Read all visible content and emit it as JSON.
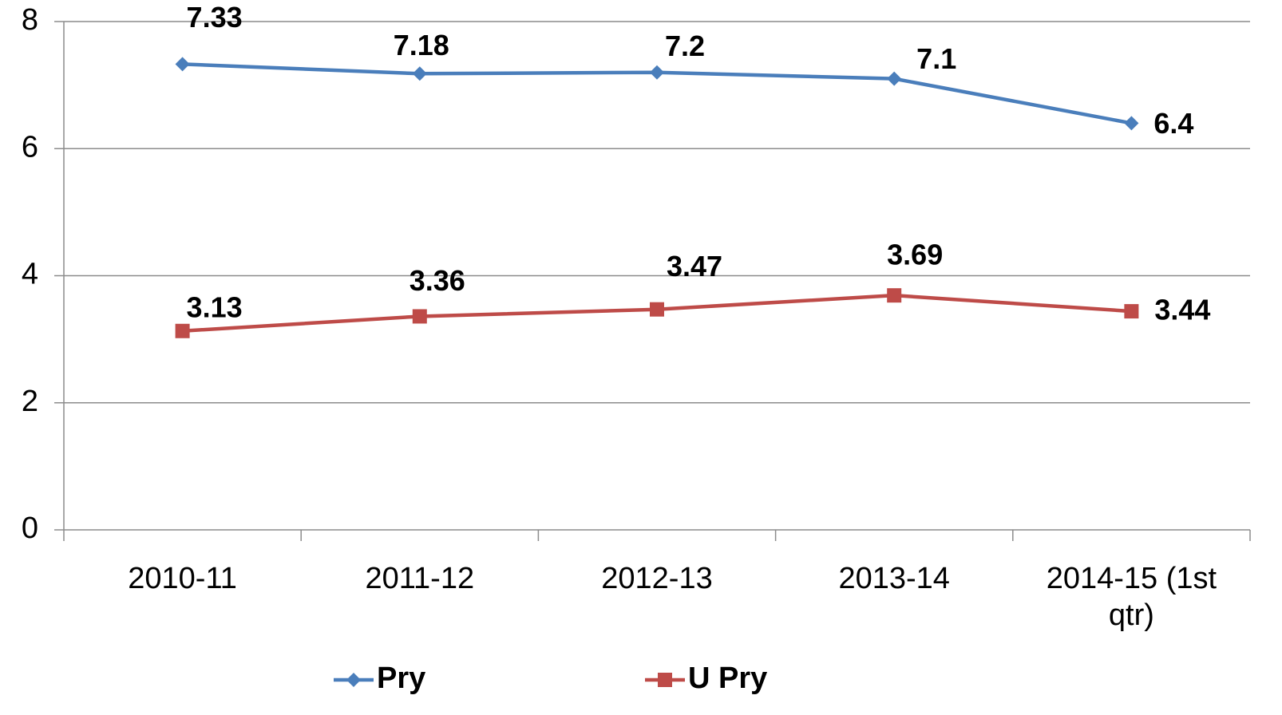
{
  "chart_data": {
    "type": "line",
    "categories": [
      "2010-11",
      "2011-12",
      "2012-13",
      "2013-14",
      "2014-15 (1st qtr)"
    ],
    "series": [
      {
        "name": "Pry",
        "color": "#4a7ebb",
        "marker": "diamond",
        "values": [
          7.33,
          7.18,
          7.2,
          7.1,
          6.4
        ]
      },
      {
        "name": "U Pry",
        "color": "#be4b48",
        "marker": "square",
        "values": [
          3.13,
          3.36,
          3.47,
          3.69,
          3.44
        ]
      }
    ],
    "ylim": [
      0,
      8
    ],
    "yticks": [
      0,
      2,
      4,
      6,
      8
    ],
    "grid": true,
    "legend": "bottom"
  }
}
